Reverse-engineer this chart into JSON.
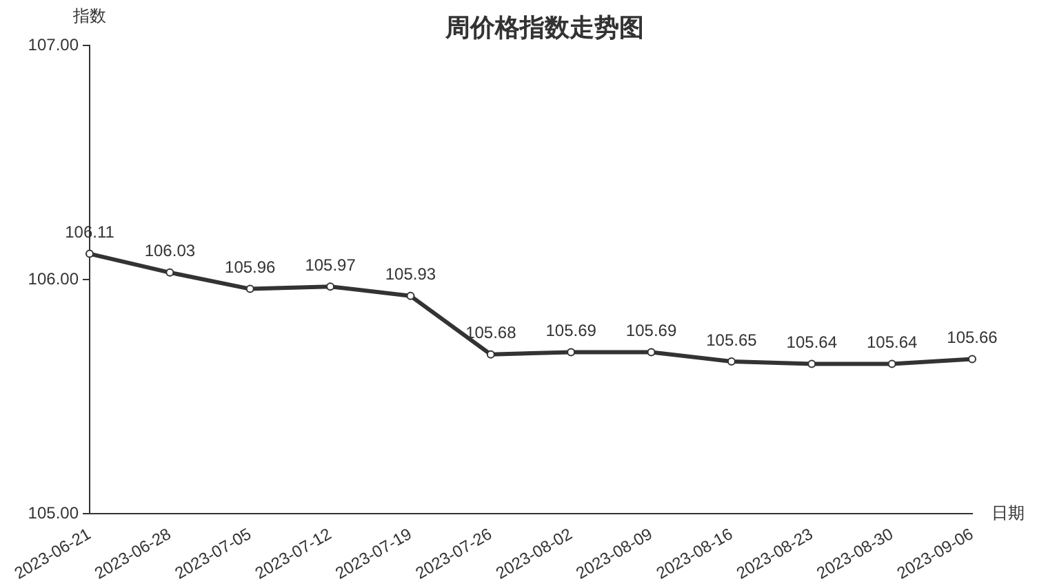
{
  "chart_data": {
    "type": "line",
    "title": "周价格指数走势图",
    "xlabel": "日期",
    "ylabel": "指数",
    "categories": [
      "2023-06-21",
      "2023-06-28",
      "2023-07-05",
      "2023-07-12",
      "2023-07-19",
      "2023-07-26",
      "2023-08-02",
      "2023-08-09",
      "2023-08-16",
      "2023-08-23",
      "2023-08-30",
      "2023-09-06"
    ],
    "series": [
      {
        "color": "#333333",
        "values": [
          106.11,
          106.03,
          105.96,
          105.97,
          105.93,
          105.68,
          105.69,
          105.69,
          105.65,
          105.64,
          105.64,
          105.66
        ]
      }
    ],
    "ylim": [
      105,
      107
    ],
    "yticks": [
      {
        "value": 105,
        "label": "105.00"
      },
      {
        "value": 106,
        "label": "106.00"
      },
      {
        "value": 107,
        "label": "107.00"
      }
    ],
    "grid": false,
    "legend": false,
    "marker": "circle",
    "line_style": "solid",
    "data_labels": true
  }
}
